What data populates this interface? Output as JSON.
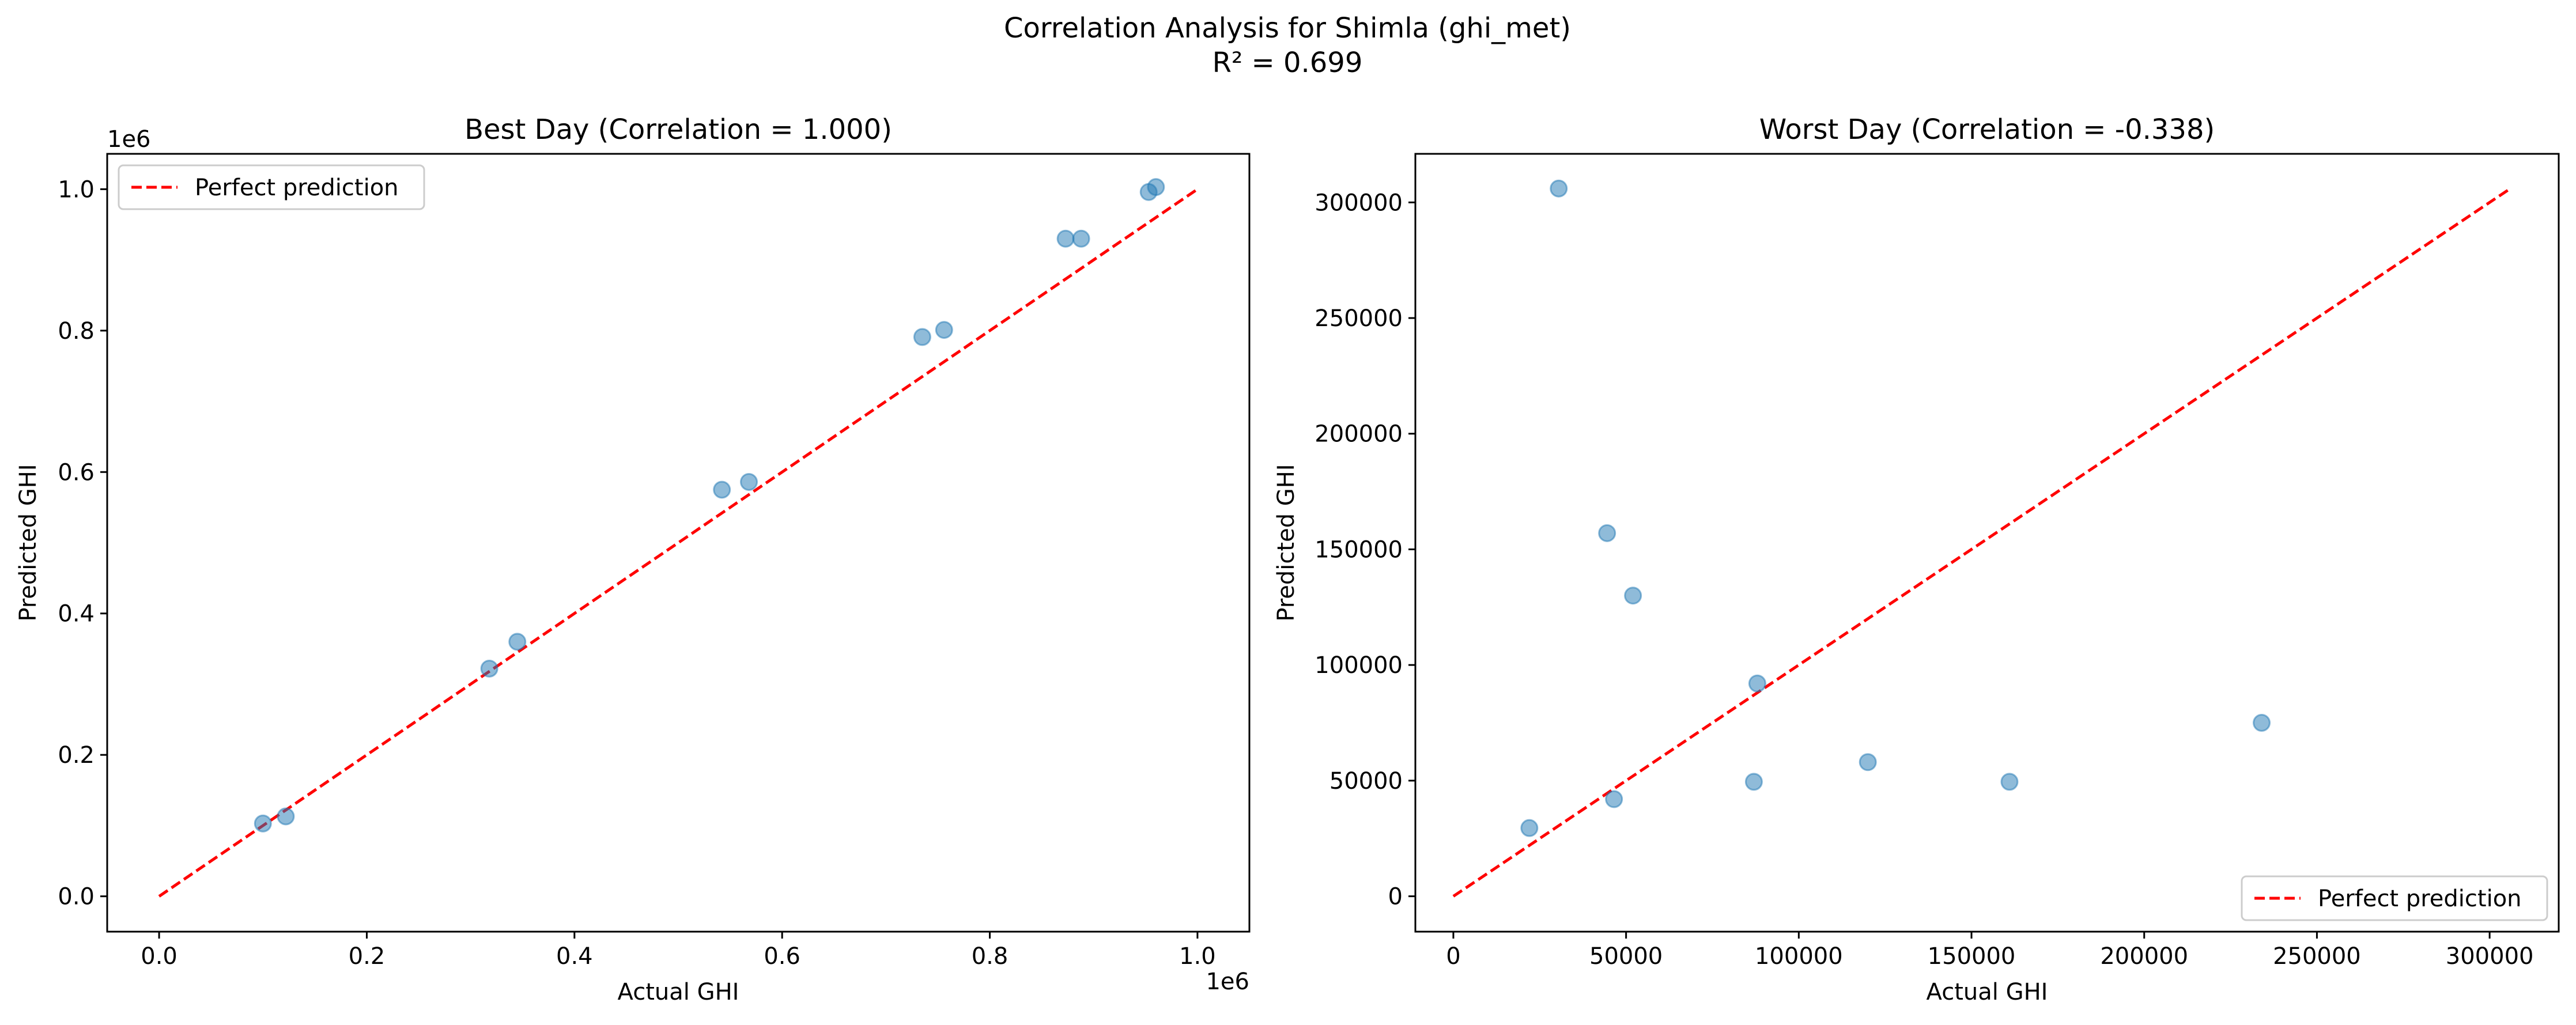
{
  "figure": {
    "title": "Correlation Analysis for Shimla (ghi_met)",
    "subtitle": "R² = 0.699"
  },
  "colors": {
    "points": "#1f77b4",
    "reference_line": "#ff0000"
  },
  "chart_data": [
    {
      "type": "scatter",
      "title": "Best Day (Correlation = 1.000)",
      "xlabel": "Actual GHI",
      "ylabel": "Predicted GHI",
      "x_offset_label": "1e6",
      "y_offset_label": "1e6",
      "xlim": [
        -50000,
        1050000
      ],
      "ylim": [
        -50000,
        1050000
      ],
      "x_ticks": [
        {
          "value": 0,
          "label": "0.0"
        },
        {
          "value": 200000,
          "label": "0.2"
        },
        {
          "value": 400000,
          "label": "0.4"
        },
        {
          "value": 600000,
          "label": "0.6"
        },
        {
          "value": 800000,
          "label": "0.8"
        },
        {
          "value": 1000000,
          "label": "1.0"
        }
      ],
      "y_ticks": [
        {
          "value": 0,
          "label": "0.0"
        },
        {
          "value": 200000,
          "label": "0.2"
        },
        {
          "value": 400000,
          "label": "0.4"
        },
        {
          "value": 600000,
          "label": "0.6"
        },
        {
          "value": 800000,
          "label": "0.8"
        },
        {
          "value": 1000000,
          "label": "1.0"
        }
      ],
      "grid": false,
      "points": [
        {
          "x": 100000,
          "y": 103000
        },
        {
          "x": 122000,
          "y": 113000
        },
        {
          "x": 318000,
          "y": 322000
        },
        {
          "x": 345000,
          "y": 360000
        },
        {
          "x": 542000,
          "y": 575000
        },
        {
          "x": 568000,
          "y": 586000
        },
        {
          "x": 735000,
          "y": 791000
        },
        {
          "x": 756000,
          "y": 801000
        },
        {
          "x": 873000,
          "y": 930000
        },
        {
          "x": 888000,
          "y": 930000
        },
        {
          "x": 953000,
          "y": 996000
        },
        {
          "x": 960000,
          "y": 1003000
        }
      ],
      "reference_line": {
        "name": "Perfect prediction",
        "from": [
          0,
          0
        ],
        "to": [
          1000000,
          1000000
        ]
      },
      "legend": {
        "position": "upper-left",
        "entries": [
          "Perfect prediction"
        ]
      }
    },
    {
      "type": "scatter",
      "title": "Worst Day (Correlation = -0.338)",
      "xlabel": "Actual GHI",
      "ylabel": "Predicted GHI",
      "x_offset_label": "",
      "y_offset_label": "",
      "xlim": [
        -11000,
        320000
      ],
      "ylim": [
        -15300,
        321000
      ],
      "x_ticks": [
        {
          "value": 0,
          "label": "0"
        },
        {
          "value": 50000,
          "label": "50000"
        },
        {
          "value": 100000,
          "label": "100000"
        },
        {
          "value": 150000,
          "label": "150000"
        },
        {
          "value": 200000,
          "label": "200000"
        },
        {
          "value": 250000,
          "label": "250000"
        },
        {
          "value": 300000,
          "label": "300000"
        }
      ],
      "y_ticks": [
        {
          "value": 0,
          "label": "0"
        },
        {
          "value": 50000,
          "label": "50000"
        },
        {
          "value": 100000,
          "label": "100000"
        },
        {
          "value": 150000,
          "label": "150000"
        },
        {
          "value": 200000,
          "label": "200000"
        },
        {
          "value": 250000,
          "label": "250000"
        },
        {
          "value": 300000,
          "label": "300000"
        }
      ],
      "grid": false,
      "points": [
        {
          "x": 22000,
          "y": 29500
        },
        {
          "x": 30500,
          "y": 306000
        },
        {
          "x": 44500,
          "y": 157000
        },
        {
          "x": 46500,
          "y": 42000
        },
        {
          "x": 52000,
          "y": 130000
        },
        {
          "x": 87000,
          "y": 49500
        },
        {
          "x": 88000,
          "y": 92000
        },
        {
          "x": 120000,
          "y": 58000
        },
        {
          "x": 161000,
          "y": 49500
        },
        {
          "x": 234000,
          "y": 75000
        }
      ],
      "reference_line": {
        "name": "Perfect prediction",
        "from": [
          0,
          0
        ],
        "to": [
          306000,
          306000
        ]
      },
      "legend": {
        "position": "lower-right",
        "entries": [
          "Perfect prediction"
        ]
      }
    }
  ]
}
